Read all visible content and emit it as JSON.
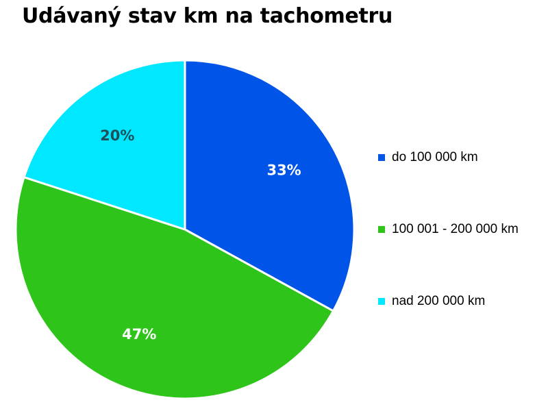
{
  "chart_data": {
    "type": "pie",
    "title": "Udávaný stav km na tachometru",
    "categories": [
      "do 100 000 km",
      "100 001 - 200 000 km",
      "nad 200 000 km"
    ],
    "values": [
      33,
      47,
      20
    ],
    "data_labels": [
      "33%",
      "47%",
      "20%"
    ],
    "colors": [
      "#0055E8",
      "#2EC41A",
      "#00E8FF"
    ],
    "label_colors": [
      "#ffffff",
      "#ffffff",
      "#1f4f5a"
    ],
    "legend_position": "right"
  }
}
